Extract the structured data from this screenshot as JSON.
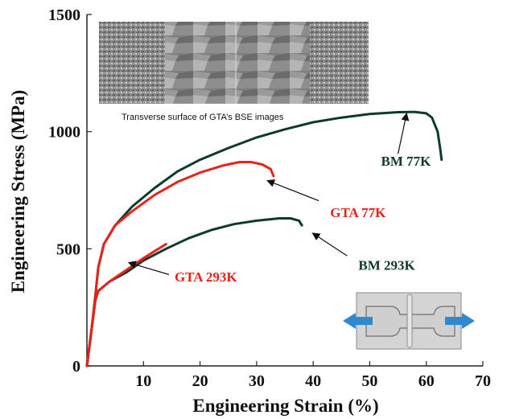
{
  "chart_data": {
    "type": "line",
    "xlabel": "Engineering Strain (%)",
    "ylabel": "Engineering Stress (MPa)",
    "xlim": [
      0,
      70
    ],
    "ylim": [
      0,
      1500
    ],
    "xticks": [
      10,
      20,
      30,
      40,
      50,
      60,
      70
    ],
    "yticks": [
      0,
      500,
      1000,
      1500
    ],
    "grid": false,
    "series": [
      {
        "name": "BM 77K",
        "color": "#0d3b2a",
        "points": [
          [
            0,
            0
          ],
          [
            0.8,
            150
          ],
          [
            1.5,
            300
          ],
          [
            2,
            420
          ],
          [
            3,
            520
          ],
          [
            5,
            600
          ],
          [
            8,
            680
          ],
          [
            12,
            760
          ],
          [
            16,
            830
          ],
          [
            20,
            880
          ],
          [
            25,
            930
          ],
          [
            30,
            975
          ],
          [
            35,
            1010
          ],
          [
            40,
            1040
          ],
          [
            45,
            1060
          ],
          [
            50,
            1075
          ],
          [
            55,
            1083
          ],
          [
            58,
            1084
          ],
          [
            60,
            1078
          ],
          [
            61,
            1060
          ],
          [
            62,
            1000
          ],
          [
            62.5,
            920
          ],
          [
            62.7,
            880
          ]
        ]
      },
      {
        "name": "GTA 77K",
        "color": "#e8231c",
        "points": [
          [
            0,
            0
          ],
          [
            0.8,
            150
          ],
          [
            1.5,
            300
          ],
          [
            2,
            420
          ],
          [
            3,
            520
          ],
          [
            5,
            600
          ],
          [
            8,
            660
          ],
          [
            12,
            730
          ],
          [
            16,
            785
          ],
          [
            20,
            825
          ],
          [
            24,
            855
          ],
          [
            27,
            870
          ],
          [
            29,
            870
          ],
          [
            31,
            860
          ],
          [
            32.5,
            840
          ],
          [
            33,
            810
          ]
        ]
      },
      {
        "name": "BM 293K",
        "color": "#0d3b2a",
        "points": [
          [
            0,
            0
          ],
          [
            0.8,
            150
          ],
          [
            1.5,
            280
          ],
          [
            2,
            320
          ],
          [
            4,
            360
          ],
          [
            7,
            400
          ],
          [
            10,
            450
          ],
          [
            14,
            500
          ],
          [
            18,
            545
          ],
          [
            22,
            580
          ],
          [
            26,
            605
          ],
          [
            30,
            620
          ],
          [
            34,
            630
          ],
          [
            36,
            630
          ],
          [
            37.5,
            620
          ],
          [
            38,
            600
          ]
        ]
      },
      {
        "name": "GTA 293K",
        "color": "#e8231c",
        "points": [
          [
            0,
            0
          ],
          [
            0.8,
            150
          ],
          [
            1.5,
            280
          ],
          [
            2,
            320
          ],
          [
            4,
            360
          ],
          [
            7,
            410
          ],
          [
            10,
            460
          ],
          [
            12,
            490
          ],
          [
            14,
            520
          ]
        ]
      }
    ],
    "annotations": [
      {
        "text": "BM 77K",
        "color": "#0d3b2a",
        "label_at": [
          52,
          855
        ],
        "arrow_from": [
          55,
          905
        ],
        "arrow_to": [
          56.5,
          1075
        ]
      },
      {
        "text": "GTA 77K",
        "color": "#e8231c",
        "label_at": [
          43,
          635
        ],
        "arrow_from": [
          41,
          705
        ],
        "arrow_to": [
          32,
          790
        ]
      },
      {
        "text": "BM 293K",
        "color": "#0d3b2a",
        "label_at": [
          48,
          410
        ],
        "arrow_from": [
          46,
          470
        ],
        "arrow_to": [
          40,
          565
        ]
      },
      {
        "text": "GTA 293K",
        "color": "#e8231c",
        "label_at": [
          15.5,
          360
        ],
        "arrow_from": [
          14.5,
          390
        ],
        "arrow_to": [
          7.5,
          440
        ]
      }
    ],
    "inset_caption": "Transverse surface of GTA’s BSE images",
    "inset_diagram": "tensile-specimen-schematic"
  }
}
